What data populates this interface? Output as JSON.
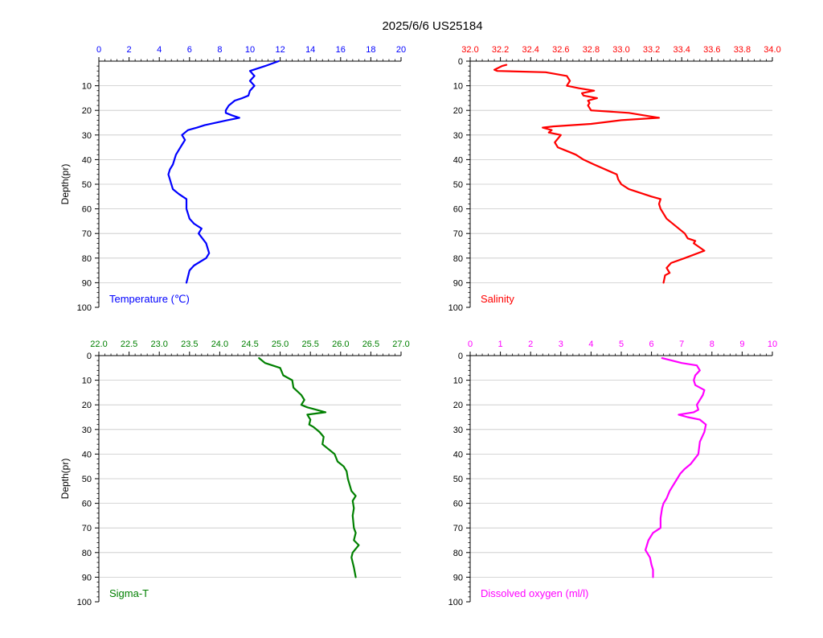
{
  "title": "2025/6/6  US25184",
  "chart_data": [
    {
      "type": "line",
      "panel": "top-left",
      "series_label": "Temperature (℃)",
      "ylabel": "Depth(pr)",
      "color": "#0000ff",
      "xlim": [
        0,
        20
      ],
      "xticks": [
        0,
        2,
        4,
        6,
        8,
        10,
        12,
        14,
        16,
        18,
        20
      ],
      "xtick_labels": [
        "0",
        "2",
        "4",
        "6",
        "8",
        "10",
        "12",
        "14",
        "16",
        "18",
        "20"
      ],
      "ylim": [
        0,
        100
      ],
      "yticks": [
        10,
        20,
        30,
        40,
        50,
        60,
        70,
        80,
        90,
        100
      ],
      "ytick_labels": [
        "10",
        "20",
        "30",
        "40",
        "50",
        "60",
        "70",
        "80",
        "90",
        "100"
      ],
      "grid": true,
      "x": [
        11.9,
        11.0,
        10.0,
        10.3,
        10.0,
        10.3,
        10.0,
        9.9,
        9.5,
        9.0,
        8.6,
        8.4,
        8.4,
        8.8,
        9.3,
        8.5,
        7.0,
        6.5,
        5.9,
        5.5,
        5.7,
        5.5,
        5.3,
        5.1,
        5.0,
        4.9,
        4.7,
        4.6,
        4.7,
        4.8,
        4.9,
        5.3,
        5.8,
        5.8,
        5.8,
        5.9,
        6.0,
        6.3,
        6.8,
        6.6,
        7.1,
        7.3,
        7.1,
        6.3,
        6.0,
        5.8
      ],
      "y": [
        0,
        2,
        4,
        6,
        8,
        10,
        12,
        14,
        15,
        16,
        18,
        20,
        21,
        22,
        23,
        24,
        26,
        27,
        28,
        30,
        32,
        34,
        36,
        38,
        40,
        42,
        44,
        46,
        48,
        50,
        52,
        54,
        56,
        58,
        60,
        62,
        64,
        66,
        68,
        70,
        74,
        78,
        80,
        83,
        85,
        90
      ]
    },
    {
      "type": "line",
      "panel": "top-right",
      "series_label": "Salinity",
      "color": "#ff0000",
      "xlim": [
        32.0,
        34.0
      ],
      "xticks": [
        32.0,
        32.2,
        32.4,
        32.6,
        32.8,
        33.0,
        33.2,
        33.4,
        33.6,
        33.8,
        34.0
      ],
      "xtick_labels": [
        "32.0",
        "32.2",
        "32.4",
        "32.6",
        "32.8",
        "33.0",
        "33.2",
        "33.4",
        "33.6",
        "33.8",
        "34.0"
      ],
      "ylim": [
        0,
        100
      ],
      "yticks": [
        0,
        10,
        20,
        30,
        40,
        50,
        60,
        70,
        80,
        90,
        100
      ],
      "ytick_labels": [
        "0",
        "10",
        "20",
        "30",
        "40",
        "50",
        "60",
        "70",
        "80",
        "90",
        "100"
      ],
      "grid": true,
      "x": [
        32.24,
        32.21,
        32.16,
        32.18,
        32.5,
        32.64,
        32.66,
        32.64,
        32.72,
        32.82,
        32.74,
        32.75,
        32.84,
        32.78,
        32.79,
        32.78,
        32.8,
        33.05,
        33.25,
        33.0,
        32.8,
        32.55,
        32.48,
        32.54,
        32.52,
        32.6,
        32.56,
        32.58,
        32.62,
        32.66,
        32.7,
        32.75,
        32.82,
        32.97,
        32.98,
        33.0,
        33.05,
        33.2,
        33.26,
        33.25,
        33.26,
        33.3,
        33.42,
        33.44,
        33.49,
        33.48,
        33.55,
        33.42,
        33.33,
        33.3,
        33.32,
        33.29,
        33.28
      ],
      "y": [
        1.5,
        2,
        3.5,
        4,
        4.5,
        6,
        8,
        10,
        11,
        12,
        13,
        14,
        15,
        16,
        17,
        18,
        20,
        21,
        23,
        24,
        25.5,
        26.5,
        27,
        28,
        29,
        30,
        33,
        35,
        36,
        37,
        38,
        40,
        42,
        46,
        48,
        50,
        52,
        55,
        56,
        58,
        60,
        64,
        70,
        72,
        73,
        74,
        77,
        80,
        82,
        84,
        86,
        87,
        90
      ]
    },
    {
      "type": "line",
      "panel": "bottom-left",
      "series_label": "Sigma-T",
      "ylabel": "Depth(pr)",
      "color": "#008000",
      "xlim": [
        22.0,
        27.0
      ],
      "xticks": [
        22.0,
        22.5,
        23.0,
        23.5,
        24.0,
        24.5,
        25.0,
        25.5,
        26.0,
        26.5,
        27.0
      ],
      "xtick_labels": [
        "22.0",
        "22.5",
        "23.0",
        "23.5",
        "24.0",
        "24.5",
        "25.0",
        "25.5",
        "26.0",
        "26.5",
        "27.0"
      ],
      "ylim": [
        0,
        100
      ],
      "yticks": [
        0,
        10,
        20,
        30,
        40,
        50,
        60,
        70,
        80,
        90,
        100
      ],
      "ytick_labels": [
        "0",
        "10",
        "20",
        "30",
        "40",
        "50",
        "60",
        "70",
        "80",
        "90",
        "100"
      ],
      "grid": true,
      "x": [
        24.65,
        24.75,
        25.0,
        25.05,
        25.2,
        25.22,
        25.35,
        25.4,
        25.35,
        25.45,
        25.6,
        25.75,
        25.45,
        25.5,
        25.48,
        25.55,
        25.65,
        25.72,
        25.7,
        25.8,
        25.9,
        25.95,
        26.05,
        26.1,
        26.12,
        26.18,
        26.25,
        26.2,
        26.22,
        26.2,
        26.22,
        26.25,
        26.22,
        26.3,
        26.2,
        26.18,
        26.22,
        26.25
      ],
      "y": [
        1,
        3,
        5,
        8,
        10,
        13,
        16,
        18,
        20,
        21,
        22,
        23,
        24,
        26,
        28,
        29,
        31,
        33,
        36,
        38,
        40,
        43,
        45,
        47,
        50,
        55,
        57,
        59,
        62,
        65,
        70,
        72,
        75,
        77,
        80,
        82,
        86,
        90
      ]
    },
    {
      "type": "line",
      "panel": "bottom-right",
      "series_label": "Dissolved oxygen (ml/l)",
      "color": "#ff00ff",
      "xlim": [
        0,
        10
      ],
      "xticks": [
        0,
        1,
        2,
        3,
        4,
        5,
        6,
        7,
        8,
        9,
        10
      ],
      "xtick_labels": [
        "0",
        "1",
        "2",
        "3",
        "4",
        "5",
        "6",
        "7",
        "8",
        "9",
        "10"
      ],
      "ylim": [
        0,
        100
      ],
      "yticks": [
        0,
        10,
        20,
        30,
        40,
        50,
        60,
        70,
        80,
        90,
        100
      ],
      "ytick_labels": [
        "0",
        "10",
        "20",
        "30",
        "40",
        "50",
        "60",
        "70",
        "80",
        "90",
        "100"
      ],
      "grid": true,
      "x": [
        6.35,
        7.0,
        7.5,
        7.6,
        7.45,
        7.4,
        7.45,
        7.75,
        7.7,
        7.6,
        7.5,
        7.55,
        7.4,
        6.9,
        7.2,
        7.6,
        7.8,
        7.75,
        7.6,
        7.55,
        7.3,
        7.1,
        6.95,
        6.85,
        6.6,
        6.5,
        6.4,
        6.35,
        6.3,
        6.3,
        6.05,
        5.9,
        5.8,
        5.95,
        6.0,
        6.05,
        6.05
      ],
      "y": [
        1,
        3,
        4,
        6,
        8,
        10,
        12,
        14,
        16,
        18,
        20,
        22,
        23,
        24,
        25,
        26,
        28,
        31,
        35,
        40,
        44,
        46,
        48,
        50,
        55,
        58,
        60,
        62,
        66,
        70,
        72,
        75,
        79,
        82,
        85,
        87,
        90
      ]
    }
  ]
}
